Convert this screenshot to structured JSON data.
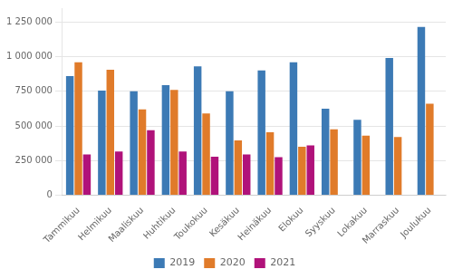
{
  "chart_data": {
    "type": "bar",
    "categories": [
      "Tammikuu",
      "Helmikuu",
      "Maaliskuu",
      "Huhtikuu",
      "Toukokuu",
      "Kesäkuu",
      "Heinäkuu",
      "Elokuu",
      "Syyskuu",
      "Lokakuu",
      "Marraskuu",
      "Joulukuu"
    ],
    "series": [
      {
        "name": "2019",
        "color": "#3c7ab5",
        "values": [
          860000,
          755000,
          750000,
          795000,
          930000,
          750000,
          900000,
          960000,
          625000,
          545000,
          990000,
          1215000
        ]
      },
      {
        "name": "2020",
        "color": "#e07b2a",
        "values": [
          960000,
          905000,
          620000,
          760000,
          590000,
          395000,
          455000,
          350000,
          475000,
          430000,
          420000,
          660000
        ]
      },
      {
        "name": "2021",
        "color": "#b0127a",
        "values": [
          295000,
          315000,
          470000,
          315000,
          278000,
          295000,
          275000,
          360000,
          null,
          null,
          null,
          null
        ]
      }
    ],
    "ylim": [
      0,
      1350000
    ],
    "yticks": [
      0,
      {
        "value": 250000,
        "label": "250 000"
      },
      {
        "value": 500000,
        "label": "500 000"
      },
      {
        "value": 750000,
        "label": "750 000"
      },
      {
        "value": 1000000,
        "label": "1 000 000"
      },
      {
        "value": 1250000,
        "label": "1 250 000"
      }
    ],
    "grid": true,
    "legend": "bottom"
  }
}
